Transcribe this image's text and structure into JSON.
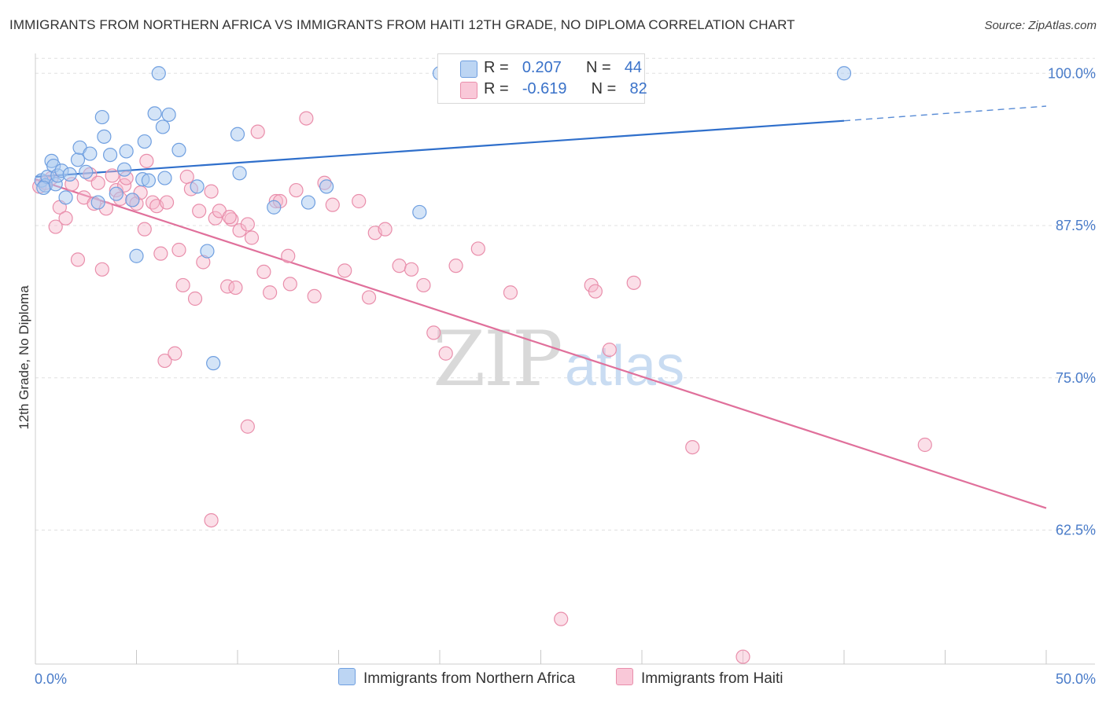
{
  "title": "IMMIGRANTS FROM NORTHERN AFRICA VS IMMIGRANTS FROM HAITI 12TH GRADE, NO DIPLOMA CORRELATION CHART",
  "source": "Source: ZipAtlas.com",
  "watermark": {
    "zip": "ZIP",
    "atlas": "atlas"
  },
  "legend_top": [
    {
      "r_label": "R =",
      "r_value": "0.207",
      "n_label": "N =",
      "n_value": "44"
    },
    {
      "r_label": "R =",
      "r_value": "-0.619",
      "n_label": "N =",
      "n_value": "82"
    }
  ],
  "legend_bottom": [
    {
      "label": "Immigrants from Northern Africa"
    },
    {
      "label": "Immigrants from Haiti"
    }
  ],
  "colors": {
    "blue_fill": "#a9c9f0",
    "blue_stroke": "#6f9fe0",
    "blue_line": "#2f6fcb",
    "pink_fill": "#f7b8cd",
    "pink_stroke": "#e98eab",
    "pink_line": "#e0709b",
    "tick_text": "#4a7cc9",
    "grid": "#e0e0e0"
  },
  "chart_data": {
    "type": "scatter",
    "title": "IMMIGRANTS FROM NORTHERN AFRICA VS IMMIGRANTS FROM HAITI 12TH GRADE, NO DIPLOMA CORRELATION CHART",
    "xlabel": "",
    "ylabel": "12th Grade, No Diploma",
    "xlim": [
      0,
      50
    ],
    "ylim": [
      51.5,
      101.5
    ],
    "x_tick_labels": [
      "0.0%",
      "50.0%"
    ],
    "y_ticks": [
      62.5,
      75.0,
      87.5,
      100.0
    ],
    "y_tick_labels": [
      "62.5%",
      "75.0%",
      "87.5%",
      "100.0%"
    ],
    "grid": true,
    "legend": "top-center",
    "series": [
      {
        "name": "Immigrants from Northern Africa",
        "r": 0.207,
        "n": 44,
        "trend": {
          "x0": 0,
          "y0": 91.5,
          "x1": 40,
          "y1": 96.1,
          "dashed_to_x": 50,
          "dashed_to_y": 97.3
        },
        "points": [
          [
            0.3,
            91.2
          ],
          [
            0.5,
            90.8
          ],
          [
            0.6,
            91.5
          ],
          [
            0.8,
            92.8
          ],
          [
            0.9,
            92.4
          ],
          [
            1.0,
            90.9
          ],
          [
            1.1,
            91.6
          ],
          [
            1.3,
            92.0
          ],
          [
            1.5,
            89.8
          ],
          [
            1.7,
            91.7
          ],
          [
            2.1,
            92.9
          ],
          [
            2.2,
            93.9
          ],
          [
            2.5,
            91.9
          ],
          [
            2.7,
            93.4
          ],
          [
            3.1,
            89.4
          ],
          [
            3.3,
            96.4
          ],
          [
            3.4,
            94.8
          ],
          [
            3.7,
            93.3
          ],
          [
            4.0,
            90.1
          ],
          [
            4.4,
            92.1
          ],
          [
            4.5,
            93.6
          ],
          [
            4.8,
            89.6
          ],
          [
            5.0,
            85.0
          ],
          [
            5.3,
            91.3
          ],
          [
            5.4,
            94.4
          ],
          [
            5.6,
            91.2
          ],
          [
            5.9,
            96.7
          ],
          [
            6.1,
            100.0
          ],
          [
            6.3,
            95.6
          ],
          [
            6.4,
            91.4
          ],
          [
            6.6,
            96.6
          ],
          [
            7.1,
            93.7
          ],
          [
            8.0,
            90.7
          ],
          [
            8.5,
            85.4
          ],
          [
            8.8,
            76.2
          ],
          [
            10.0,
            95.0
          ],
          [
            10.1,
            91.8
          ],
          [
            11.8,
            89.0
          ],
          [
            13.5,
            89.4
          ],
          [
            14.4,
            90.7
          ],
          [
            19.0,
            88.6
          ],
          [
            20.0,
            100.0
          ],
          [
            40.0,
            100.0
          ],
          [
            0.4,
            90.6
          ]
        ]
      },
      {
        "name": "Immigrants from Haiti",
        "r": -0.619,
        "n": 82,
        "trend": {
          "x0": 0,
          "y0": 91.3,
          "x1": 50,
          "y1": 64.3
        },
        "points": [
          [
            0.2,
            90.7
          ],
          [
            0.5,
            91.0
          ],
          [
            0.8,
            91.4
          ],
          [
            1.0,
            87.4
          ],
          [
            1.2,
            89.0
          ],
          [
            1.5,
            88.1
          ],
          [
            1.8,
            90.9
          ],
          [
            2.1,
            84.7
          ],
          [
            2.4,
            89.8
          ],
          [
            2.7,
            91.7
          ],
          [
            2.9,
            89.3
          ],
          [
            3.1,
            91.0
          ],
          [
            3.3,
            83.9
          ],
          [
            3.5,
            88.9
          ],
          [
            3.8,
            91.6
          ],
          [
            4.0,
            90.4
          ],
          [
            4.2,
            89.7
          ],
          [
            4.4,
            90.8
          ],
          [
            4.5,
            91.4
          ],
          [
            4.8,
            89.6
          ],
          [
            5.0,
            89.3
          ],
          [
            5.2,
            90.2
          ],
          [
            5.4,
            87.2
          ],
          [
            5.5,
            92.8
          ],
          [
            5.8,
            89.4
          ],
          [
            6.0,
            89.1
          ],
          [
            6.2,
            85.2
          ],
          [
            6.4,
            76.4
          ],
          [
            6.5,
            89.4
          ],
          [
            6.9,
            77.0
          ],
          [
            7.1,
            85.5
          ],
          [
            7.3,
            82.6
          ],
          [
            7.5,
            91.5
          ],
          [
            7.7,
            90.5
          ],
          [
            7.9,
            81.5
          ],
          [
            8.1,
            88.7
          ],
          [
            8.3,
            84.5
          ],
          [
            8.7,
            90.3
          ],
          [
            8.9,
            88.1
          ],
          [
            9.1,
            88.7
          ],
          [
            9.5,
            82.5
          ],
          [
            9.7,
            88.0
          ],
          [
            9.9,
            82.4
          ],
          [
            10.1,
            87.1
          ],
          [
            10.5,
            87.6
          ],
          [
            10.7,
            86.5
          ],
          [
            11.0,
            95.2
          ],
          [
            11.3,
            83.7
          ],
          [
            11.6,
            82.0
          ],
          [
            11.9,
            89.5
          ],
          [
            12.1,
            89.5
          ],
          [
            12.5,
            85.0
          ],
          [
            12.6,
            82.7
          ],
          [
            12.9,
            90.4
          ],
          [
            13.4,
            96.3
          ],
          [
            13.8,
            81.7
          ],
          [
            14.3,
            91.0
          ],
          [
            14.7,
            89.2
          ],
          [
            15.3,
            83.8
          ],
          [
            16.0,
            89.5
          ],
          [
            16.5,
            81.6
          ],
          [
            16.8,
            86.9
          ],
          [
            17.3,
            87.2
          ],
          [
            18.0,
            84.2
          ],
          [
            18.6,
            83.9
          ],
          [
            19.2,
            82.6
          ],
          [
            19.7,
            78.7
          ],
          [
            20.3,
            77.0
          ],
          [
            20.8,
            84.2
          ],
          [
            21.9,
            85.6
          ],
          [
            23.5,
            82.0
          ],
          [
            26.0,
            55.2
          ],
          [
            27.5,
            82.6
          ],
          [
            27.7,
            82.1
          ],
          [
            28.4,
            77.3
          ],
          [
            29.6,
            82.8
          ],
          [
            32.5,
            69.3
          ],
          [
            35.0,
            52.1
          ],
          [
            44.0,
            69.5
          ],
          [
            10.5,
            71.0
          ],
          [
            8.7,
            63.3
          ],
          [
            9.6,
            88.2
          ]
        ]
      }
    ]
  }
}
